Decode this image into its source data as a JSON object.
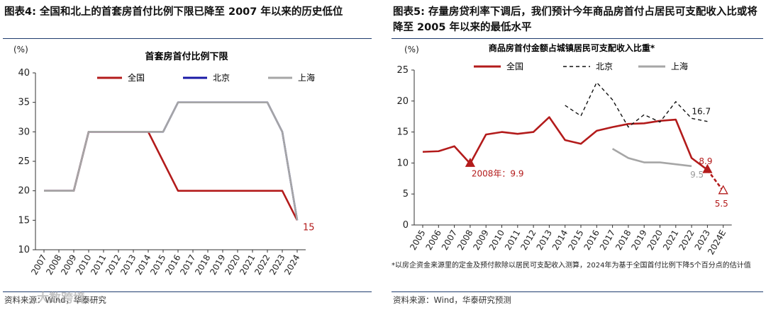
{
  "colors": {
    "quanguo": "#b31b1b",
    "beijing": "#1a1aa6",
    "shanghai": "#a6a6a6",
    "frame_line": "#1f3c6e"
  },
  "left": {
    "header": "图表4:  全国和北上的首套房首付比例下限已降至 2007 年以来的历史低位",
    "source": "资料来源：Wind，华泰研究",
    "watermark": "大数跨境",
    "chart_data": {
      "type": "line",
      "title": "首套房首付比例下限",
      "unit": "(%)",
      "categories": [
        "2007",
        "2008",
        "2009",
        "2010",
        "2011",
        "2012",
        "2013",
        "2014",
        "2015",
        "2016",
        "2017",
        "2018",
        "2019",
        "2020",
        "2021",
        "2022",
        "2023",
        "2024"
      ],
      "ylim": [
        10,
        40
      ],
      "yticks": [
        "10",
        "15",
        "20",
        "25",
        "30",
        "35",
        "40"
      ],
      "series": [
        {
          "name": "全国",
          "values": [
            20,
            20,
            20,
            30,
            30,
            30,
            30,
            30,
            25,
            20,
            20,
            20,
            20,
            20,
            20,
            20,
            20,
            15
          ]
        },
        {
          "name": "北京",
          "values": [
            20,
            20,
            20,
            30,
            30,
            30,
            30,
            30,
            30,
            35,
            35,
            35,
            35,
            35,
            35,
            35,
            30,
            15
          ]
        },
        {
          "name": "上海",
          "values": [
            20,
            20,
            20,
            30,
            30,
            30,
            30,
            30,
            30,
            35,
            35,
            35,
            35,
            35,
            35,
            35,
            30,
            15
          ]
        }
      ],
      "end_label": "15"
    }
  },
  "right": {
    "header": "图表5:  存量房贷利率下调后，我们预计今年商品房首付占居民可支配收入比或将降至 2005 年以来的最低水平",
    "source": "资料来源：Wind，华泰研究预测",
    "note": "*以房企资金来源里的定金及预付款除以居民可支配收入测算，2024年为基于全国首付比例下降5个百分点的估计值",
    "chart_data": {
      "type": "line",
      "title": "商品房首付金额占城镇居民可支配收入比重*",
      "unit": "(%)",
      "categories": [
        "2005",
        "2006",
        "2007",
        "2008",
        "2009",
        "2010",
        "2011",
        "2012",
        "2013",
        "2014",
        "2015",
        "2016",
        "2017",
        "2018",
        "2019",
        "2020",
        "2021",
        "2022",
        "2023",
        "2024E"
      ],
      "ylim": [
        0,
        25
      ],
      "yticks": [
        "0",
        "5",
        "10",
        "15",
        "20",
        "25"
      ],
      "series": [
        {
          "name": "全国",
          "values": [
            11.8,
            11.9,
            12.7,
            9.9,
            14.6,
            15.0,
            14.7,
            15.0,
            17.4,
            13.7,
            13.1,
            15.2,
            15.8,
            16.3,
            16.4,
            16.8,
            17.0,
            10.8,
            8.9,
            null
          ]
        },
        {
          "name": "北京",
          "values": [
            null,
            null,
            null,
            null,
            null,
            null,
            null,
            null,
            null,
            19.3,
            17.6,
            23.0,
            20.2,
            15.8,
            17.8,
            16.6,
            19.9,
            17.2,
            16.7,
            null
          ]
        },
        {
          "name": "上海",
          "values": [
            null,
            null,
            null,
            null,
            null,
            null,
            null,
            null,
            null,
            null,
            null,
            null,
            12.3,
            10.8,
            10.1,
            10.1,
            9.8,
            9.5,
            null,
            null
          ]
        }
      ],
      "forecast": {
        "from": 8.9,
        "to": 5.5
      },
      "annotations": {
        "low2008": "2008年：9.9",
        "qg2023": "8.9",
        "bj2023": "16.7",
        "sh2022": "9.5",
        "forecast2024": "5.5"
      }
    }
  }
}
